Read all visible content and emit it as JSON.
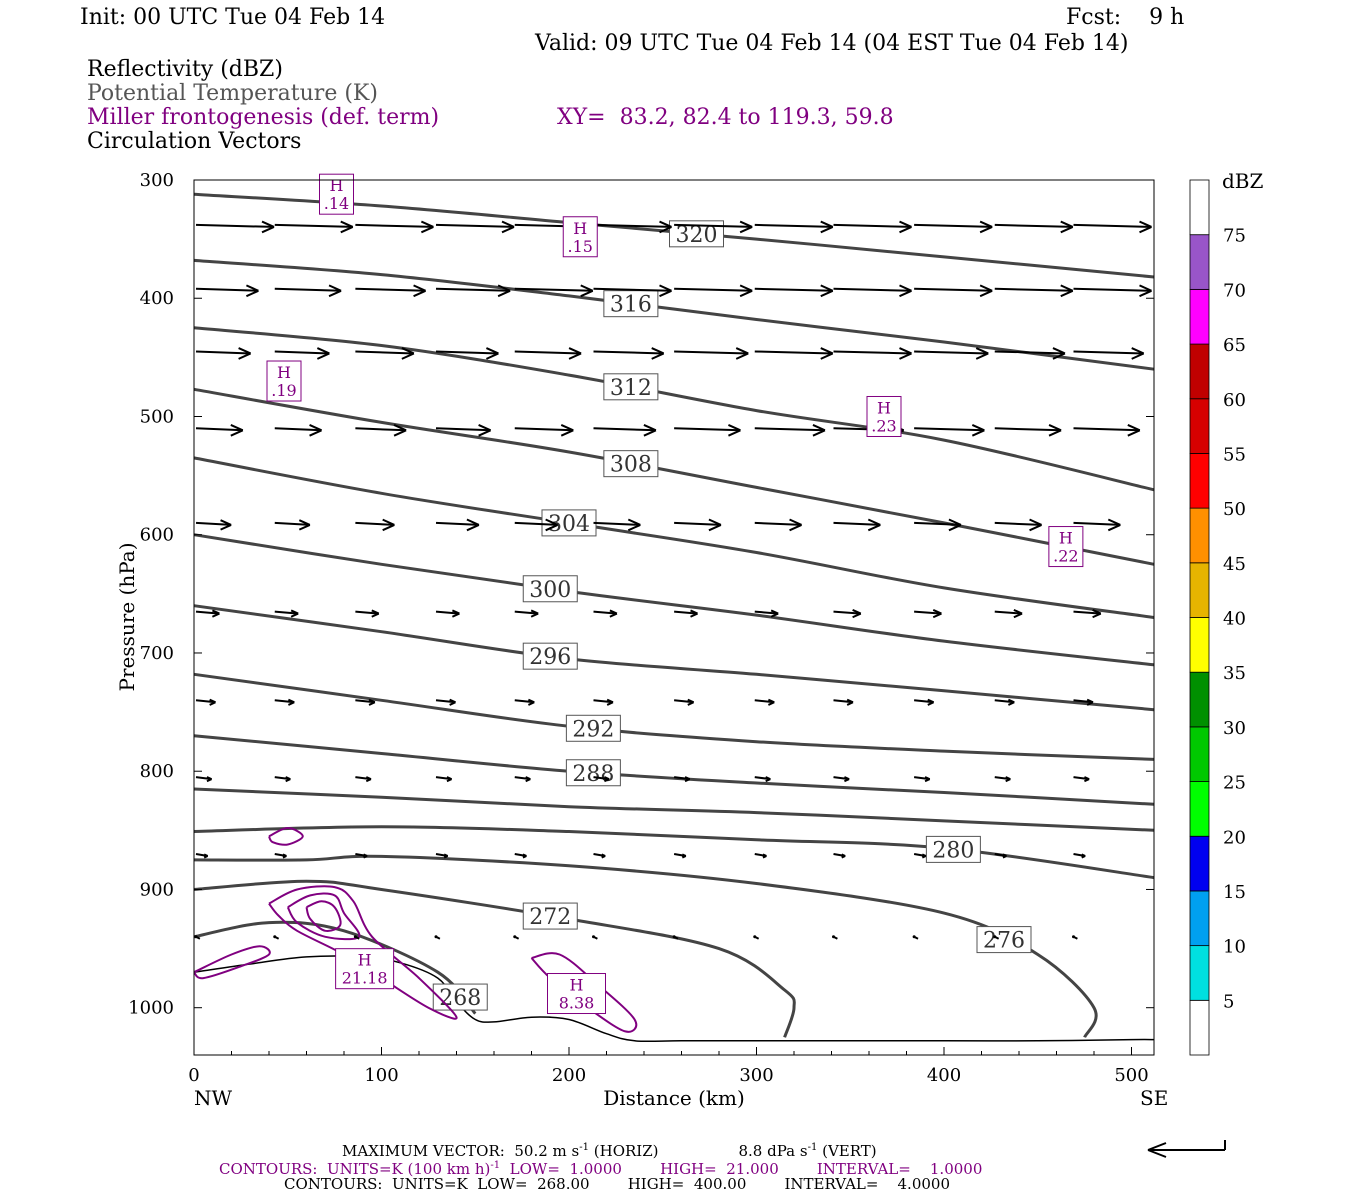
{
  "header": {
    "init": "Init: 00 UTC Tue 04 Feb 14",
    "fcst": "Fcst:    9 h",
    "valid": "Valid: 09 UTC Tue 04 Feb 14 (04 EST Tue 04 Feb 14)"
  },
  "legend": {
    "reflectivity": "Reflectivity (dBZ)",
    "theta": "Potential Temperature (K)",
    "frontogenesis": "Miller frontogenesis (def. term)",
    "xy": "XY=  83.2, 82.4 to 119.3, 59.8",
    "vectors": "Circulation Vectors"
  },
  "colors": {
    "theta": "#444444",
    "frontogenesis": "#800080",
    "vectors": "#000000",
    "terrain": "#000000"
  },
  "chart_data": {
    "type": "cross-section",
    "xlabel": "Distance (km)",
    "ylabel": "Pressure (hPa)",
    "xlim": [
      0,
      512
    ],
    "ylim": [
      1040,
      300
    ],
    "x_ticks": [
      0,
      100,
      200,
      300,
      400,
      500
    ],
    "y_ticks": [
      300,
      400,
      500,
      600,
      700,
      800,
      900,
      1000
    ],
    "left_end_label": "NW",
    "right_end_label": "SE",
    "terrain": {
      "x": [
        0,
        30,
        60,
        90,
        110,
        130,
        140,
        150,
        160,
        180,
        200,
        220,
        235,
        260,
        300,
        350,
        400,
        450,
        500,
        512
      ],
      "p": [
        970,
        963,
        957,
        957,
        962,
        975,
        995,
        1010,
        1012,
        1008,
        1010,
        1022,
        1028,
        1028,
        1028,
        1028,
        1028,
        1028,
        1027,
        1027
      ]
    },
    "theta_contours": [
      {
        "level": 320,
        "label": "320",
        "label_x": 268,
        "x": [
          0,
          100,
          200,
          300,
          400,
          512
        ],
        "p": [
          312,
          322,
          336,
          350,
          365,
          382
        ]
      },
      {
        "level": 316,
        "label": "316",
        "label_x": 233,
        "x": [
          0,
          100,
          200,
          300,
          400,
          512
        ],
        "p": [
          368,
          380,
          398,
          418,
          437,
          460
        ]
      },
      {
        "level": 312,
        "label": "312",
        "label_x": 233,
        "x": [
          0,
          100,
          200,
          300,
          400,
          512
        ],
        "p": [
          425,
          440,
          465,
          495,
          520,
          562
        ]
      },
      {
        "level": 308,
        "label": "308",
        "label_x": 233,
        "x": [
          0,
          100,
          200,
          300,
          400,
          512
        ],
        "p": [
          477,
          505,
          530,
          560,
          590,
          625
        ]
      },
      {
        "level": 304,
        "label": "304",
        "label_x": 200,
        "x": [
          0,
          100,
          200,
          300,
          400,
          512
        ],
        "p": [
          535,
          565,
          590,
          615,
          645,
          670
        ]
      },
      {
        "level": 300,
        "label": "300",
        "label_x": 190,
        "x": [
          0,
          100,
          200,
          300,
          400,
          512
        ],
        "p": [
          600,
          625,
          648,
          668,
          690,
          710
        ]
      },
      {
        "level": 296,
        "label": "296",
        "label_x": 190,
        "x": [
          0,
          100,
          200,
          300,
          400,
          512
        ],
        "p": [
          660,
          682,
          705,
          718,
          732,
          748
        ]
      },
      {
        "level": 292,
        "label": "292",
        "label_x": 213,
        "x": [
          0,
          100,
          200,
          300,
          400,
          512
        ],
        "p": [
          718,
          740,
          762,
          775,
          783,
          790
        ]
      },
      {
        "level": 288,
        "label": "288",
        "label_x": 213,
        "x": [
          0,
          100,
          200,
          300,
          400,
          512
        ],
        "p": [
          770,
          785,
          800,
          810,
          818,
          828
        ]
      },
      {
        "level": 284,
        "label": "",
        "label_x": 0,
        "x": [
          0,
          100,
          200,
          300,
          400,
          512
        ],
        "p": [
          815,
          822,
          830,
          835,
          842,
          850
        ]
      },
      {
        "level": 280,
        "label": "280",
        "label_x": 405,
        "x": [
          0,
          100,
          200,
          300,
          400,
          512
        ],
        "p": [
          851,
          847,
          851,
          858,
          865,
          890
        ]
      },
      {
        "level": 276,
        "label": "276",
        "label_x": 432,
        "x": [
          0,
          60,
          100,
          200,
          300,
          400,
          450,
          480,
          475
        ],
        "p": [
          875,
          875,
          872,
          880,
          895,
          920,
          955,
          1000,
          1025
        ]
      },
      {
        "level": 272,
        "label": "272",
        "label_x": 190,
        "x": [
          0,
          60,
          100,
          200,
          280,
          315,
          320,
          315
        ],
        "p": [
          900,
          893,
          900,
          925,
          950,
          985,
          1000,
          1025
        ]
      },
      {
        "level": 268,
        "label": "268",
        "label_x": 142,
        "x": [
          0,
          40,
          80,
          130,
          150
        ],
        "p": [
          940,
          928,
          935,
          970,
          1005
        ]
      }
    ],
    "frontogenesis_maxima": [
      {
        "label": "H",
        "value": ".14",
        "x": 76,
        "p": 312
      },
      {
        "label": "H",
        "value": ".15",
        "x": 206,
        "p": 348
      },
      {
        "label": "H",
        "value": ".19",
        "x": 48,
        "p": 470
      },
      {
        "label": "H",
        "value": ".23",
        "x": 368,
        "p": 500
      },
      {
        "label": "H",
        "value": ".22",
        "x": 465,
        "p": 610
      },
      {
        "label": "H",
        "value": "21.18",
        "x": 91,
        "p": 967
      },
      {
        "label": "H",
        "value": "8.38",
        "x": 204,
        "p": 988
      }
    ],
    "vector_rows": [
      {
        "p": 338,
        "u": [
          1,
          1,
          1,
          1,
          1,
          1,
          1,
          1,
          1,
          1,
          1,
          1
        ],
        "w": [
          0,
          0,
          0,
          0,
          0,
          0,
          0,
          0,
          0,
          0,
          0,
          0
        ]
      },
      {
        "p": 392,
        "u": [
          0.8,
          0.85,
          0.9,
          0.95,
          1,
          1,
          1,
          1,
          1,
          1,
          1,
          1
        ],
        "w": [
          0,
          0,
          0,
          0,
          0,
          0,
          0,
          0,
          0,
          0,
          0,
          0
        ]
      },
      {
        "p": 445,
        "u": [
          0.7,
          0.7,
          0.75,
          0.8,
          0.85,
          0.9,
          0.95,
          1,
          1,
          0.95,
          0.9,
          0.9
        ],
        "w": [
          0,
          0,
          0,
          0,
          0,
          0,
          0,
          0,
          0,
          0,
          0,
          0
        ]
      },
      {
        "p": 510,
        "u": [
          0.6,
          0.6,
          0.65,
          0.7,
          0.75,
          0.8,
          0.85,
          0.9,
          0.9,
          0.9,
          0.85,
          0.85
        ],
        "w": [
          0,
          0,
          0,
          0,
          0,
          0,
          0,
          0,
          0,
          0,
          0,
          0
        ]
      },
      {
        "p": 590,
        "u": [
          0.45,
          0.45,
          0.5,
          0.55,
          0.55,
          0.6,
          0.6,
          0.6,
          0.6,
          0.6,
          0.6,
          0.6
        ],
        "w": [
          0,
          0,
          0,
          0,
          0,
          0,
          0,
          0,
          0,
          0,
          0,
          0
        ]
      },
      {
        "p": 665,
        "u": [
          0.3,
          0.3,
          0.3,
          0.3,
          0.3,
          0.3,
          0.3,
          0.3,
          0.35,
          0.35,
          0.35,
          0.35
        ],
        "w": [
          0,
          0,
          0,
          0,
          0,
          0,
          0,
          0,
          0,
          0,
          0,
          0
        ]
      },
      {
        "p": 740,
        "u": [
          0.25,
          0.25,
          0.25,
          0.25,
          0.25,
          0.25,
          0.25,
          0.25,
          0.25,
          0.25,
          0.25,
          0.25
        ],
        "w": [
          0,
          0,
          0,
          0,
          0,
          0,
          0,
          0,
          0,
          0,
          0,
          0
        ]
      },
      {
        "p": 805,
        "u": [
          0.2,
          0.2,
          0.2,
          0.2,
          0.2,
          0.2,
          0.2,
          0.2,
          0.2,
          0.2,
          0.2,
          0.2
        ],
        "w": [
          0,
          0,
          0,
          0,
          0,
          0,
          0,
          0,
          0,
          0,
          0,
          0
        ]
      },
      {
        "p": 870,
        "u": [
          0.15,
          0.15,
          0.15,
          0.15,
          0.15,
          0.15,
          0.15,
          0.15,
          0.15,
          0.15,
          0.15,
          0.15
        ],
        "w": [
          0,
          0,
          0,
          0,
          0,
          0,
          0,
          0,
          0,
          0,
          0,
          0
        ]
      },
      {
        "p": 940,
        "u": [
          0.05,
          0.05,
          0.05,
          0.05,
          0.05,
          0.05,
          0.05,
          0.05,
          0.05,
          0.05,
          0.05,
          0.05
        ],
        "w": [
          0,
          0,
          0,
          0,
          0,
          0,
          0,
          0,
          0,
          0,
          0,
          0
        ]
      }
    ],
    "colorbar": {
      "label": "dBZ",
      "ticks": [
        "5",
        "10",
        "15",
        "20",
        "25",
        "30",
        "35",
        "40",
        "45",
        "50",
        "55",
        "60",
        "65",
        "70",
        "75"
      ],
      "colors": [
        "#00e0e0",
        "#00a0f0",
        "#0000f0",
        "#00ff00",
        "#00c800",
        "#009000",
        "#ffff00",
        "#e6b400",
        "#ff9000",
        "#ff0000",
        "#d60000",
        "#c00000",
        "#ff00ff",
        "#9955c9",
        "#ffffff"
      ]
    }
  },
  "footer": {
    "max_vector": "MAXIMUM VECTOR:  50.2 m s",
    "max_vector_exp": "-1",
    "max_vector_horiz": "(HORIZ)",
    "max_vector_vert": "8.8 dPa s",
    "max_vector_vert_exp": "-1",
    "max_vector_vert_tag": "(VERT)",
    "contours1": "CONTOURS:  UNITS=K (100 km h)",
    "contours1_exp": "-1",
    "contours1_rest": "  LOW=  1.0000        HIGH=  21.000        INTERVAL=    1.0000",
    "contours2": "CONTOURS:  UNITS=K  LOW=  268.00        HIGH=  400.00        INTERVAL=    4.0000"
  }
}
